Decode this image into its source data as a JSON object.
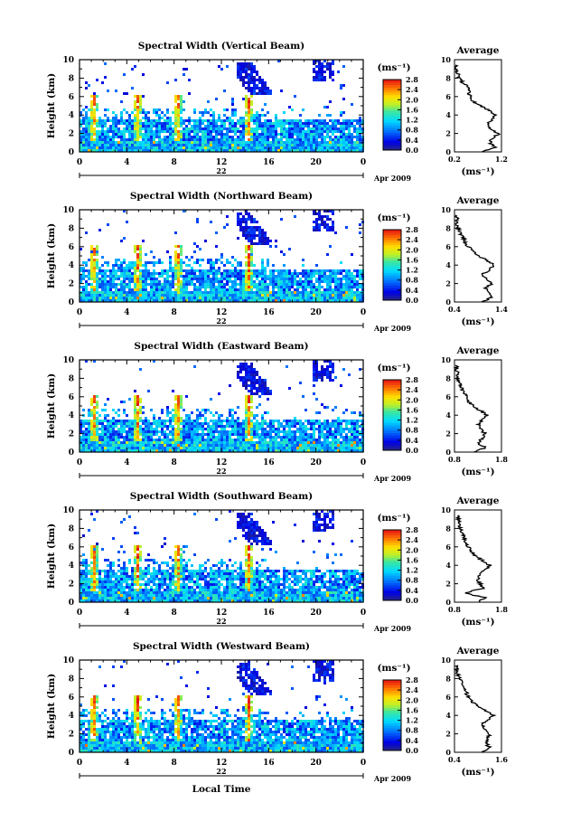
{
  "chart_data": [
    {
      "type": "heatmap",
      "title": "Spectral Width (Vertical Beam)",
      "ylabel": "Height (km)",
      "xlabel": "",
      "xlim": [
        0,
        24
      ],
      "ylim": [
        0,
        10
      ],
      "xticks": [
        "0",
        "4",
        "8",
        "12",
        "16",
        "20",
        "0"
      ],
      "yticks": [
        "0",
        "2",
        "4",
        "6",
        "8",
        "10"
      ],
      "date_day": "22",
      "date_month": "Apr 2009",
      "colorbar": {
        "unit": "(ms⁻¹)",
        "ticks": [
          "2.8",
          "2.4",
          "2.0",
          "1.6",
          "1.2",
          "0.8",
          "0.4",
          "0.0"
        ],
        "range": [
          0,
          2.8
        ]
      },
      "average": {
        "title": "Average",
        "xlim": [
          0.2,
          1.2
        ],
        "xticks": [
          "0.2",
          "1.2"
        ],
        "xlabel": "(ms⁻¹)",
        "yticks": [
          "0",
          "2",
          "4",
          "6",
          "8",
          "10"
        ],
        "profile": [
          [
            0.0,
            0.8
          ],
          [
            0.5,
            1.05
          ],
          [
            1.0,
            0.95
          ],
          [
            1.5,
            1.0
          ],
          [
            2.0,
            1.15
          ],
          [
            2.5,
            0.95
          ],
          [
            3.0,
            0.9
          ],
          [
            3.5,
            1.0
          ],
          [
            4.0,
            1.05
          ],
          [
            4.5,
            0.95
          ],
          [
            5.0,
            0.75
          ],
          [
            5.5,
            0.6
          ],
          [
            6.0,
            0.55
          ],
          [
            6.5,
            0.5
          ],
          [
            7.0,
            0.5
          ],
          [
            7.5,
            0.38
          ],
          [
            8.0,
            0.3
          ],
          [
            8.5,
            0.27
          ],
          [
            9.0,
            0.25
          ],
          [
            9.5,
            0.22
          ]
        ]
      }
    },
    {
      "type": "heatmap",
      "title": "Spectral Width (Northward Beam)",
      "ylabel": "Height (km)",
      "xlabel": "",
      "xlim": [
        0,
        24
      ],
      "ylim": [
        0,
        10
      ],
      "xticks": [
        "0",
        "4",
        "8",
        "12",
        "16",
        "20",
        "0"
      ],
      "yticks": [
        "0",
        "2",
        "4",
        "6",
        "8",
        "10"
      ],
      "date_day": "22",
      "date_month": "Apr 2009",
      "colorbar": {
        "unit": "(ms⁻¹)",
        "ticks": [
          "2.8",
          "2.4",
          "2.0",
          "1.6",
          "1.2",
          "0.8",
          "0.4",
          "0.0"
        ],
        "range": [
          0,
          2.8
        ]
      },
      "average": {
        "title": "Average",
        "xlim": [
          0.4,
          1.4
        ],
        "xticks": [
          "0.4",
          "1.4"
        ],
        "xlabel": "(ms⁻¹)",
        "yticks": [
          "0",
          "2",
          "4",
          "6",
          "8",
          "10"
        ],
        "profile": [
          [
            0.0,
            1.0
          ],
          [
            0.5,
            1.2
          ],
          [
            1.0,
            1.15
          ],
          [
            1.5,
            1.05
          ],
          [
            2.0,
            1.2
          ],
          [
            2.5,
            1.1
          ],
          [
            3.0,
            1.0
          ],
          [
            3.5,
            1.15
          ],
          [
            4.0,
            1.25
          ],
          [
            4.5,
            1.1
          ],
          [
            5.0,
            0.9
          ],
          [
            5.5,
            0.8
          ],
          [
            6.0,
            0.7
          ],
          [
            6.5,
            0.62
          ],
          [
            7.0,
            0.58
          ],
          [
            7.5,
            0.52
          ],
          [
            8.0,
            0.48
          ],
          [
            8.5,
            0.46
          ],
          [
            9.0,
            0.45
          ],
          [
            9.5,
            0.44
          ]
        ]
      }
    },
    {
      "type": "heatmap",
      "title": "Spectral Width (Eastward Beam)",
      "ylabel": "Height (km)",
      "xlabel": "",
      "xlim": [
        0,
        24
      ],
      "ylim": [
        0,
        10
      ],
      "xticks": [
        "0",
        "4",
        "8",
        "12",
        "16",
        "20",
        "0"
      ],
      "yticks": [
        "0",
        "2",
        "4",
        "6",
        "8",
        "10"
      ],
      "date_day": "22",
      "date_month": "Apr 2009",
      "colorbar": {
        "unit": "(ms⁻¹)",
        "ticks": [
          "2.8",
          "2.4",
          "2.0",
          "1.6",
          "1.2",
          "0.8",
          "0.4",
          "0.0"
        ],
        "range": [
          0,
          2.8
        ]
      },
      "average": {
        "title": "Average",
        "xlim": [
          0.8,
          1.8
        ],
        "xticks": [
          "0.8",
          "1.8"
        ],
        "xlabel": "(ms⁻¹)",
        "yticks": [
          "0",
          "2",
          "4",
          "6",
          "8",
          "10"
        ],
        "profile": [
          [
            0.0,
            1.25
          ],
          [
            0.5,
            1.45
          ],
          [
            1.0,
            1.3
          ],
          [
            1.5,
            1.4
          ],
          [
            2.0,
            1.45
          ],
          [
            2.5,
            1.35
          ],
          [
            3.0,
            1.3
          ],
          [
            3.5,
            1.4
          ],
          [
            4.0,
            1.5
          ],
          [
            4.5,
            1.35
          ],
          [
            5.0,
            1.2
          ],
          [
            5.5,
            1.1
          ],
          [
            6.0,
            1.05
          ],
          [
            6.5,
            1.0
          ],
          [
            7.0,
            0.95
          ],
          [
            7.5,
            0.9
          ],
          [
            8.0,
            0.88
          ],
          [
            8.5,
            0.86
          ],
          [
            9.0,
            0.85
          ],
          [
            9.5,
            0.84
          ]
        ]
      }
    },
    {
      "type": "heatmap",
      "title": "Spectral Width (Southward Beam)",
      "ylabel": "Height (km)",
      "xlabel": "",
      "xlim": [
        0,
        24
      ],
      "ylim": [
        0,
        10
      ],
      "xticks": [
        "0",
        "4",
        "8",
        "12",
        "16",
        "20",
        "0"
      ],
      "yticks": [
        "0",
        "2",
        "4",
        "6",
        "8",
        "10"
      ],
      "date_day": "22",
      "date_month": "Apr 2009",
      "colorbar": {
        "unit": "(ms⁻¹)",
        "ticks": [
          "2.8",
          "2.4",
          "2.0",
          "1.6",
          "1.2",
          "0.8",
          "0.4",
          "0.0"
        ],
        "range": [
          0,
          2.8
        ]
      },
      "average": {
        "title": "Average",
        "xlim": [
          0.8,
          1.8
        ],
        "xticks": [
          "0.8",
          "1.8"
        ],
        "xlabel": "(ms⁻¹)",
        "yticks": [
          "0",
          "2",
          "4",
          "6",
          "8",
          "10"
        ],
        "profile": [
          [
            0.0,
            1.3
          ],
          [
            0.5,
            1.45
          ],
          [
            1.0,
            1.0
          ],
          [
            1.5,
            1.4
          ],
          [
            2.0,
            1.35
          ],
          [
            2.5,
            1.3
          ],
          [
            3.0,
            1.35
          ],
          [
            3.5,
            1.45
          ],
          [
            4.0,
            1.55
          ],
          [
            4.5,
            1.4
          ],
          [
            5.0,
            1.25
          ],
          [
            5.5,
            1.15
          ],
          [
            6.0,
            1.1
          ],
          [
            6.5,
            1.05
          ],
          [
            7.0,
            1.0
          ],
          [
            7.5,
            0.95
          ],
          [
            8.0,
            0.92
          ],
          [
            8.5,
            0.9
          ],
          [
            9.0,
            0.88
          ],
          [
            9.5,
            0.86
          ]
        ]
      }
    },
    {
      "type": "heatmap",
      "title": "Spectral Width (Westward Beam)",
      "ylabel": "Height (km)",
      "xlabel": "Local Time",
      "xlim": [
        0,
        24
      ],
      "ylim": [
        0,
        10
      ],
      "xticks": [
        "0",
        "4",
        "8",
        "12",
        "16",
        "20",
        "0"
      ],
      "yticks": [
        "0",
        "2",
        "4",
        "6",
        "8",
        "10"
      ],
      "date_day": "22",
      "date_month": "Apr 2009",
      "colorbar": {
        "unit": "(ms⁻¹)",
        "ticks": [
          "2.8",
          "2.4",
          "2.0",
          "1.6",
          "1.2",
          "0.8",
          "0.4",
          "0.0"
        ],
        "range": [
          0,
          2.8
        ]
      },
      "average": {
        "title": "Average",
        "xlim": [
          0.4,
          1.6
        ],
        "xticks": [
          "0.4",
          "1.6"
        ],
        "xlabel": "(ms⁻¹)",
        "yticks": [
          "0",
          "2",
          "4",
          "6",
          "8",
          "10"
        ],
        "profile": [
          [
            0.0,
            1.1
          ],
          [
            0.5,
            1.3
          ],
          [
            1.0,
            1.2
          ],
          [
            1.5,
            1.25
          ],
          [
            2.0,
            1.3
          ],
          [
            2.5,
            1.15
          ],
          [
            3.0,
            1.1
          ],
          [
            3.5,
            1.25
          ],
          [
            4.0,
            1.4
          ],
          [
            4.5,
            1.2
          ],
          [
            5.0,
            1.0
          ],
          [
            5.5,
            0.85
          ],
          [
            6.0,
            0.75
          ],
          [
            6.5,
            0.7
          ],
          [
            7.0,
            0.65
          ],
          [
            7.5,
            0.58
          ],
          [
            8.0,
            0.52
          ],
          [
            8.5,
            0.48
          ],
          [
            9.0,
            0.46
          ],
          [
            9.5,
            0.45
          ]
        ]
      }
    }
  ]
}
